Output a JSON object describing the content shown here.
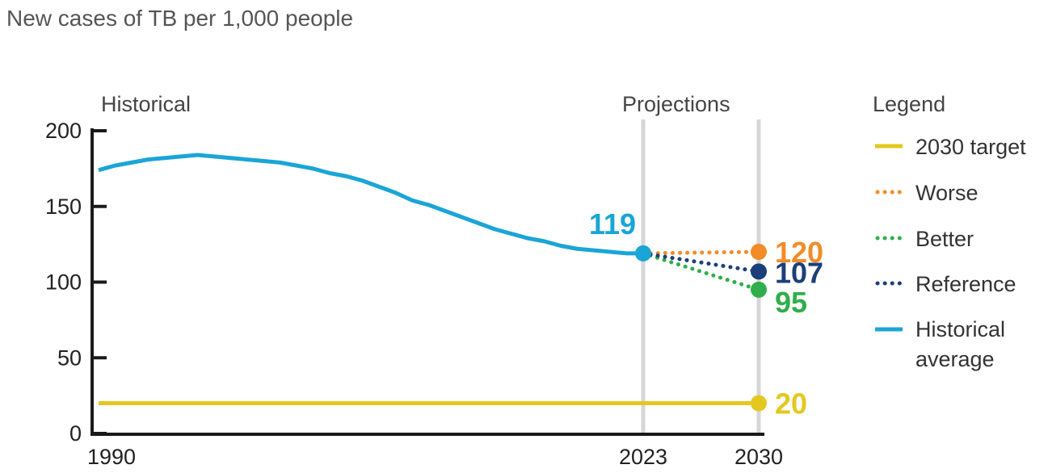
{
  "chart_data": {
    "type": "line",
    "title": "New cases of TB per 1,000 people",
    "section_labels": {
      "historical": "Historical",
      "projections": "Projections"
    },
    "legend_title": "Legend",
    "xlim": [
      1990,
      2030
    ],
    "ylim": [
      0,
      200
    ],
    "x_ticks": [
      1990,
      2023,
      2030
    ],
    "y_ticks": [
      0,
      50,
      100,
      150,
      200
    ],
    "reference_years": [
      2023,
      2030
    ],
    "series": [
      {
        "key": "target",
        "name": "2030 target",
        "color": "#e3c81f",
        "style": "solid",
        "x": [
          1990,
          2030
        ],
        "y": [
          20,
          20
        ],
        "end_label": "20"
      },
      {
        "key": "worse",
        "name": "Worse",
        "color": "#f28c28",
        "style": "dotted",
        "x": [
          2023,
          2030
        ],
        "y": [
          119,
          120
        ],
        "end_label": "120"
      },
      {
        "key": "better",
        "name": "Better",
        "color": "#2fae4b",
        "style": "dotted",
        "x": [
          2023,
          2030
        ],
        "y": [
          119,
          95
        ],
        "end_label": "95"
      },
      {
        "key": "reference",
        "name": "Reference",
        "color": "#1b3f7a",
        "style": "dotted",
        "x": [
          2023,
          2030
        ],
        "y": [
          119,
          107
        ],
        "end_label": "107"
      },
      {
        "key": "historical",
        "name": "Historical average",
        "name_lines": [
          "Historical",
          "average"
        ],
        "color": "#1aa5d6",
        "style": "solid",
        "x": [
          1990,
          1991,
          1992,
          1993,
          1994,
          1995,
          1996,
          1997,
          1998,
          1999,
          2000,
          2001,
          2002,
          2003,
          2004,
          2005,
          2006,
          2007,
          2008,
          2009,
          2010,
          2011,
          2012,
          2013,
          2014,
          2015,
          2016,
          2017,
          2018,
          2019,
          2020,
          2021,
          2022,
          2023
        ],
        "y": [
          174,
          177,
          179,
          181,
          182,
          183,
          184,
          183,
          182,
          181,
          180,
          179,
          177,
          175,
          172,
          170,
          167,
          163,
          159,
          154,
          151,
          147,
          143,
          139,
          135,
          132,
          129,
          127,
          124,
          122,
          121,
          120,
          119,
          119
        ],
        "end_label": "119"
      }
    ]
  }
}
